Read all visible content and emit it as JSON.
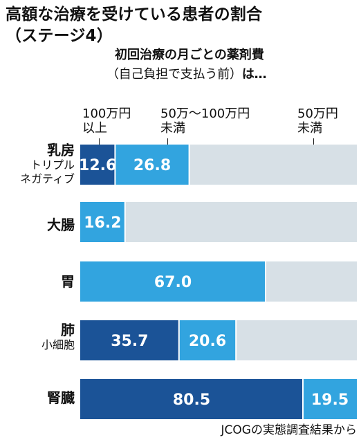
{
  "title_line1": "高額な治療を受けている患者の割合",
  "title_line2": "（ステージ4）",
  "subtitle": "初回治療の月ごとの薬剤費",
  "subtitle2_paren": "（自己負担で支払う前）",
  "subtitle2_tail": "は…",
  "legend": {
    "high_line1": "100万円",
    "high_line2": "以上",
    "mid_line1": "50万～100万円",
    "mid_line2": "未満",
    "low_line1": "50万円",
    "low_line2": "未満"
  },
  "source": "JCOGの実態調査結果から",
  "colors": {
    "high": "#1b5397",
    "mid": "#32a4df",
    "low": "#d7e0e6",
    "value_text": "#ffffff"
  },
  "chart_data": {
    "type": "bar",
    "orientation": "horizontal",
    "stacked": true,
    "unit": "%",
    "xlim": [
      0,
      100
    ],
    "categories": [
      {
        "main": "乳房",
        "sub": [
          "トリプル",
          "ネガティブ"
        ]
      },
      {
        "main": "大腸",
        "sub": []
      },
      {
        "main": "胃",
        "sub": []
      },
      {
        "main": "肺",
        "sub": [
          "小細胞"
        ]
      },
      {
        "main": "腎臓",
        "sub": []
      }
    ],
    "series": [
      {
        "name": "100万円以上",
        "color_key": "high",
        "values": [
          12.6,
          0,
          0,
          35.7,
          80.5
        ]
      },
      {
        "name": "50万～100万円未満",
        "color_key": "mid",
        "values": [
          26.8,
          16.2,
          67.0,
          20.6,
          19.5
        ]
      },
      {
        "name": "50万円未満",
        "color_key": "low",
        "values": [
          60.6,
          83.8,
          33.0,
          43.7,
          0
        ]
      }
    ],
    "labels": [
      [
        "12.6",
        "26.8",
        ""
      ],
      [
        "",
        "16.2",
        ""
      ],
      [
        "",
        "67.0",
        ""
      ],
      [
        "35.7",
        "20.6",
        ""
      ],
      [
        "80.5",
        "19.5",
        ""
      ]
    ],
    "grid": false,
    "legend_position": "top"
  }
}
